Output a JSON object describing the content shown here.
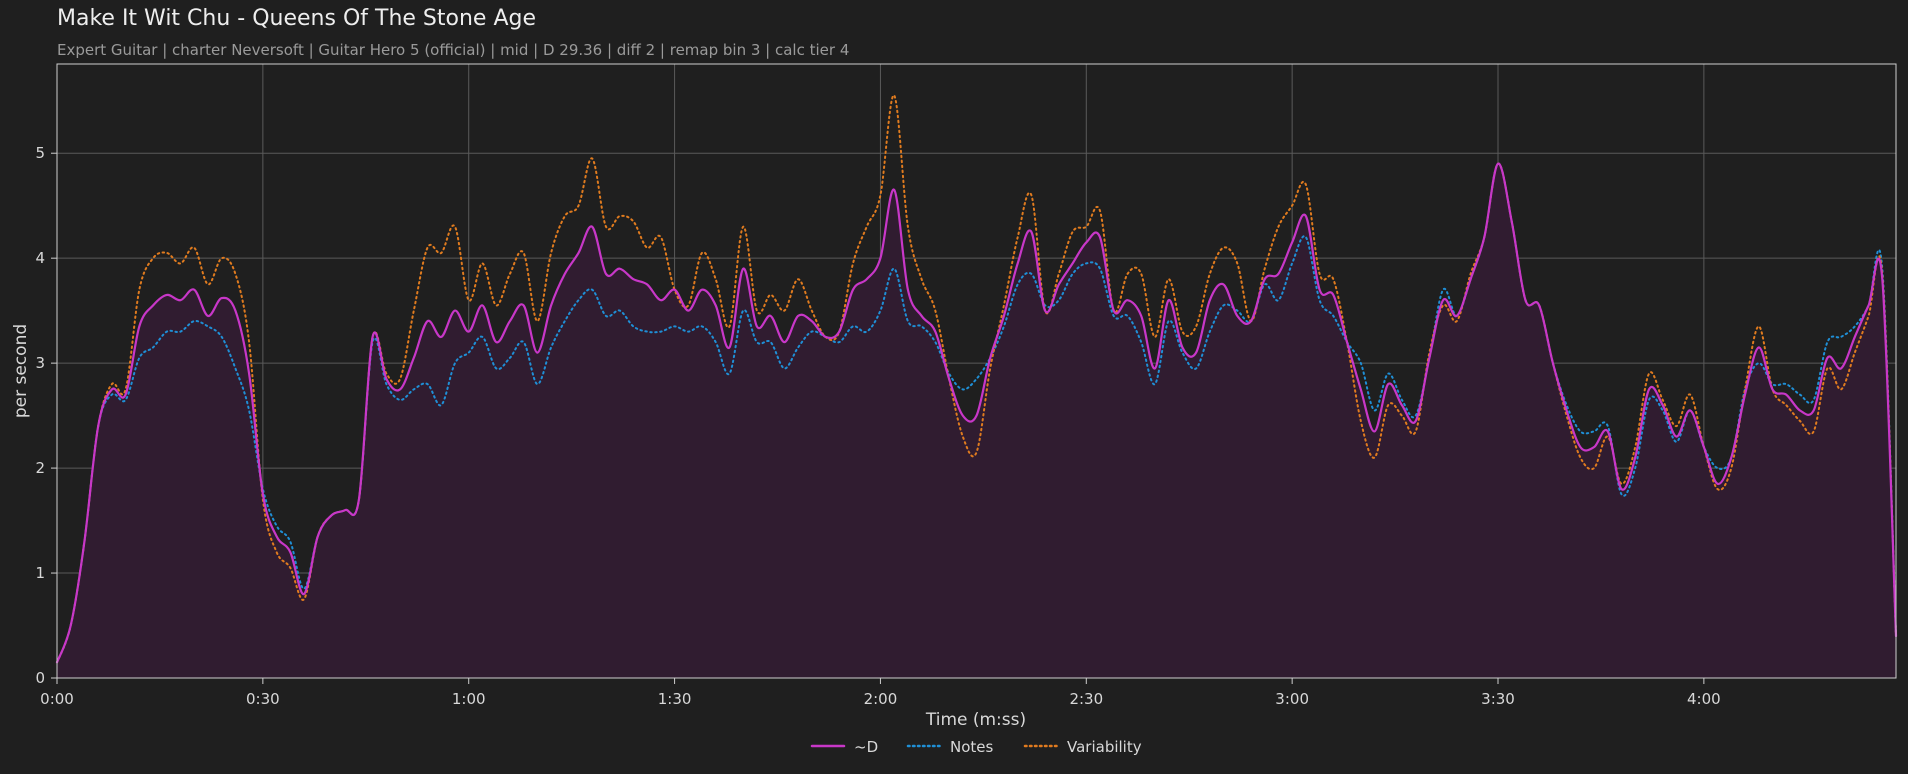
{
  "header": {
    "title": "Make It Wit Chu - Queens Of The Stone Age",
    "subtitle": "Expert Guitar  |  charter Neversoft  |  Guitar Hero 5 (official)  |  mid  |  D 29.36  |  diff 2  |  remap bin 3  |  calc tier 4"
  },
  "colors": {
    "background": "#1f1f1f",
    "plot_background": "#1f1f1f",
    "grid": "#5a5a5a",
    "axes": "#cfcfcf",
    "d_line": "#c837c8",
    "d_fill": "#301c30",
    "notes": "#1f8fd6",
    "variability": "#e07b1f"
  },
  "chart_data": {
    "type": "line",
    "xlabel": "Time (m:ss)",
    "ylabel": "per second",
    "xlim": [
      0,
      268
    ],
    "ylim": [
      0,
      5.85
    ],
    "grid": true,
    "legend_position": "bottom-center",
    "x_ticks": [
      0,
      30,
      60,
      90,
      120,
      150,
      180,
      210,
      240
    ],
    "x_tick_labels": [
      "0:00",
      "0:30",
      "1:00",
      "1:30",
      "2:00",
      "2:30",
      "3:00",
      "3:30",
      "4:00"
    ],
    "y_ticks": [
      0,
      1,
      2,
      3,
      4,
      5
    ],
    "y_tick_labels": [
      "0",
      "1",
      "2",
      "3",
      "4",
      "5"
    ],
    "x": [
      0,
      2,
      4,
      6,
      8,
      10,
      12,
      14,
      16,
      18,
      20,
      22,
      24,
      26,
      28,
      30,
      32,
      34,
      36,
      38,
      40,
      42,
      44,
      46,
      48,
      50,
      52,
      54,
      56,
      58,
      60,
      62,
      64,
      66,
      68,
      70,
      72,
      74,
      76,
      78,
      80,
      82,
      84,
      86,
      88,
      90,
      92,
      94,
      96,
      98,
      100,
      102,
      104,
      106,
      108,
      110,
      112,
      114,
      116,
      118,
      120,
      122,
      124,
      126,
      128,
      130,
      132,
      134,
      136,
      138,
      140,
      142,
      144,
      146,
      148,
      150,
      152,
      154,
      156,
      158,
      160,
      162,
      164,
      166,
      168,
      170,
      172,
      174,
      176,
      178,
      180,
      182,
      184,
      186,
      188,
      190,
      192,
      194,
      196,
      198,
      200,
      202,
      204,
      206,
      208,
      210,
      212,
      214,
      216,
      218,
      220,
      222,
      224,
      226,
      228,
      230,
      232,
      234,
      236,
      238,
      240,
      242,
      244,
      246,
      248,
      250,
      252,
      254,
      256,
      258,
      260,
      262,
      264,
      266,
      268
    ],
    "series": [
      {
        "name": "~D",
        "style": "solid",
        "values": [
          0.15,
          0.5,
          1.3,
          2.4,
          2.75,
          2.7,
          3.35,
          3.55,
          3.65,
          3.6,
          3.7,
          3.45,
          3.62,
          3.5,
          2.9,
          1.75,
          1.35,
          1.2,
          0.8,
          1.35,
          1.55,
          1.6,
          1.7,
          3.25,
          2.85,
          2.75,
          3.05,
          3.4,
          3.25,
          3.5,
          3.3,
          3.55,
          3.2,
          3.4,
          3.55,
          3.1,
          3.55,
          3.85,
          4.05,
          4.3,
          3.85,
          3.9,
          3.8,
          3.75,
          3.6,
          3.7,
          3.5,
          3.7,
          3.55,
          3.15,
          3.9,
          3.35,
          3.45,
          3.2,
          3.45,
          3.4,
          3.25,
          3.3,
          3.7,
          3.8,
          4.0,
          4.65,
          3.7,
          3.45,
          3.3,
          2.85,
          2.5,
          2.5,
          3.05,
          3.45,
          3.95,
          4.25,
          3.5,
          3.75,
          3.95,
          4.15,
          4.2,
          3.5,
          3.6,
          3.45,
          2.95,
          3.6,
          3.15,
          3.1,
          3.6,
          3.75,
          3.45,
          3.4,
          3.8,
          3.85,
          4.15,
          4.4,
          3.7,
          3.65,
          3.2,
          2.75,
          2.35,
          2.8,
          2.6,
          2.45,
          3.05,
          3.6,
          3.45,
          3.8,
          4.2,
          4.9,
          4.35,
          3.6,
          3.55,
          3.0,
          2.55,
          2.2,
          2.2,
          2.35,
          1.8,
          2.1,
          2.75,
          2.6,
          2.3,
          2.55,
          2.2,
          1.85,
          2.1,
          2.7,
          3.15,
          2.75,
          2.7,
          2.55,
          2.55,
          3.05,
          2.95,
          3.25,
          3.55,
          3.8,
          0.4
        ]
      },
      {
        "name": "Notes",
        "style": "dotted",
        "values": [
          0.15,
          0.5,
          1.3,
          2.4,
          2.7,
          2.65,
          3.05,
          3.15,
          3.3,
          3.3,
          3.4,
          3.35,
          3.25,
          2.95,
          2.55,
          1.8,
          1.45,
          1.3,
          0.85,
          1.35,
          1.55,
          1.6,
          1.7,
          3.2,
          2.8,
          2.65,
          2.75,
          2.8,
          2.6,
          3.0,
          3.1,
          3.25,
          2.95,
          3.05,
          3.2,
          2.8,
          3.15,
          3.4,
          3.6,
          3.7,
          3.45,
          3.5,
          3.35,
          3.3,
          3.3,
          3.35,
          3.3,
          3.35,
          3.2,
          2.9,
          3.5,
          3.2,
          3.2,
          2.95,
          3.15,
          3.3,
          3.25,
          3.2,
          3.35,
          3.3,
          3.5,
          3.9,
          3.4,
          3.35,
          3.2,
          2.9,
          2.75,
          2.85,
          3.05,
          3.35,
          3.75,
          3.85,
          3.55,
          3.6,
          3.85,
          3.95,
          3.9,
          3.45,
          3.45,
          3.2,
          2.8,
          3.4,
          3.1,
          2.95,
          3.3,
          3.55,
          3.5,
          3.4,
          3.75,
          3.6,
          3.95,
          4.2,
          3.6,
          3.45,
          3.2,
          3.0,
          2.55,
          2.9,
          2.65,
          2.5,
          3.05,
          3.7,
          3.45,
          3.8,
          4.2,
          4.9,
          4.35,
          3.6,
          3.55,
          3.0,
          2.6,
          2.35,
          2.35,
          2.4,
          1.75,
          2.0,
          2.65,
          2.55,
          2.25,
          2.55,
          2.2,
          2.0,
          2.1,
          2.75,
          3.0,
          2.8,
          2.8,
          2.7,
          2.65,
          3.2,
          3.25,
          3.35,
          3.55,
          3.9,
          0.4
        ]
      },
      {
        "name": "Variability",
        "style": "dotted",
        "values": [
          0.15,
          0.5,
          1.3,
          2.4,
          2.8,
          2.75,
          3.7,
          4.0,
          4.05,
          3.95,
          4.1,
          3.75,
          4.0,
          3.85,
          3.2,
          1.7,
          1.2,
          1.05,
          0.75,
          1.35,
          1.55,
          1.6,
          1.7,
          3.25,
          2.9,
          2.85,
          3.5,
          4.1,
          4.05,
          4.3,
          3.6,
          3.95,
          3.55,
          3.85,
          4.05,
          3.4,
          4.05,
          4.4,
          4.5,
          4.95,
          4.3,
          4.4,
          4.35,
          4.1,
          4.2,
          3.7,
          3.55,
          4.05,
          3.8,
          3.35,
          4.3,
          3.5,
          3.65,
          3.5,
          3.8,
          3.5,
          3.25,
          3.3,
          3.95,
          4.3,
          4.6,
          5.55,
          4.3,
          3.8,
          3.5,
          2.85,
          2.3,
          2.15,
          2.95,
          3.55,
          4.2,
          4.6,
          3.5,
          3.85,
          4.25,
          4.3,
          4.45,
          3.5,
          3.85,
          3.85,
          3.25,
          3.8,
          3.3,
          3.35,
          3.85,
          4.1,
          3.95,
          3.4,
          3.9,
          4.3,
          4.5,
          4.7,
          3.85,
          3.8,
          3.2,
          2.45,
          2.1,
          2.6,
          2.5,
          2.35,
          3.1,
          3.55,
          3.4,
          3.85,
          4.2,
          4.9,
          4.35,
          3.6,
          3.55,
          3.0,
          2.5,
          2.1,
          2.0,
          2.3,
          1.85,
          2.2,
          2.9,
          2.65,
          2.4,
          2.7,
          2.2,
          1.8,
          2.0,
          2.75,
          3.35,
          2.75,
          2.6,
          2.45,
          2.35,
          2.95,
          2.75,
          3.1,
          3.45,
          3.85,
          0.4
        ]
      }
    ]
  }
}
